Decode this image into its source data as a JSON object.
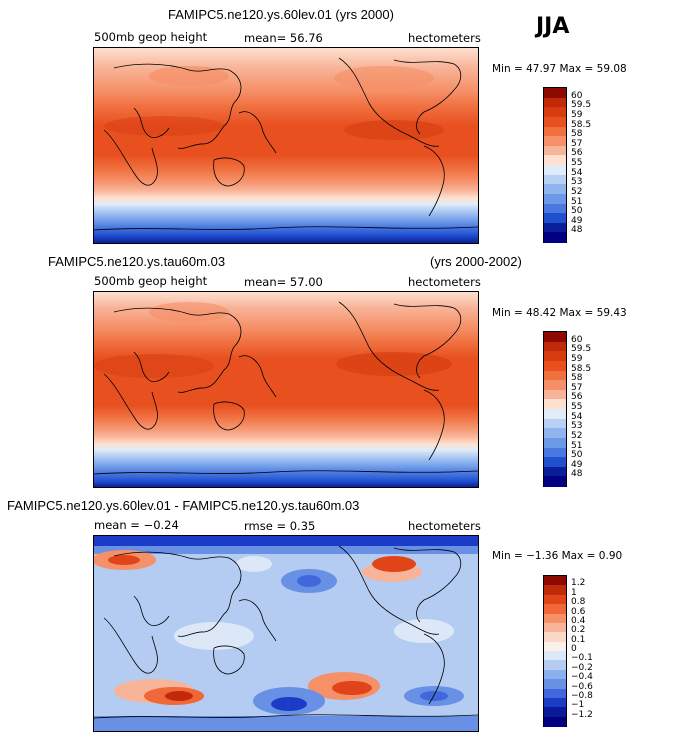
{
  "season": "JJA",
  "panels": [
    {
      "title": "FAMIPC5.ne120.ys.60lev.01 (yrs 2000)",
      "title_right": "",
      "left_label": "500mb geop height",
      "center_label": "mean=   56.76",
      "right_label": "hectometers",
      "minmax": "Min =  47.97 Max =  59.08",
      "levels": [
        "60",
        "59.5",
        "59",
        "58.5",
        "58",
        "57",
        "56",
        "55",
        "54",
        "53",
        "52",
        "51",
        "50",
        "49",
        "48"
      ],
      "colors": [
        "#8c0a00",
        "#c02a08",
        "#d63c10",
        "#e85020",
        "#f07040",
        "#f59068",
        "#f8b498",
        "#fde0d0",
        "#e0ecf8",
        "#b8d0f4",
        "#90b4ee",
        "#6c98e8",
        "#4878e0",
        "#2050d0",
        "#0a1e9a",
        "#000080"
      ]
    },
    {
      "title": "FAMIPC5.ne120.ys.tau60m.03",
      "title_right": "(yrs 2000-2002)",
      "left_label": "500mb geop height",
      "center_label": "mean=   57.00",
      "right_label": "hectometers",
      "minmax": "Min =  48.42 Max =  59.43",
      "levels": [
        "60",
        "59.5",
        "59",
        "58.5",
        "58",
        "57",
        "56",
        "55",
        "54",
        "53",
        "52",
        "51",
        "50",
        "49",
        "48"
      ],
      "colors": [
        "#8c0a00",
        "#c02a08",
        "#d63c10",
        "#e85020",
        "#f07040",
        "#f59068",
        "#f8b498",
        "#fde0d0",
        "#e0ecf8",
        "#b8d0f4",
        "#90b4ee",
        "#6c98e8",
        "#4878e0",
        "#2050d0",
        "#0a1e9a",
        "#000080"
      ]
    },
    {
      "title": "FAMIPC5.ne120.ys.60lev.01 - FAMIPC5.ne120.ys.tau60m.03",
      "title_right": "",
      "left_label": "mean =   −0.24",
      "center_label": "rmse =    0.35",
      "right_label": "hectometers",
      "minmax": "Min =  −1.36 Max =    0.90",
      "levels": [
        "1.2",
        "1",
        "0.8",
        "0.6",
        "0.4",
        "0.2",
        "0.1",
        "0",
        "−0.1",
        "−0.2",
        "−0.4",
        "−0.6",
        "−0.8",
        "−1",
        "−1.2"
      ],
      "colors": [
        "#8c0a00",
        "#c02a08",
        "#e04418",
        "#f06838",
        "#f59068",
        "#f8b498",
        "#fcd8c8",
        "#fbf0ea",
        "#dce8f8",
        "#b4ccf2",
        "#8cb0ec",
        "#6890e4",
        "#4068dc",
        "#1c3cc8",
        "#0c1a9a",
        "#000080"
      ]
    }
  ]
}
